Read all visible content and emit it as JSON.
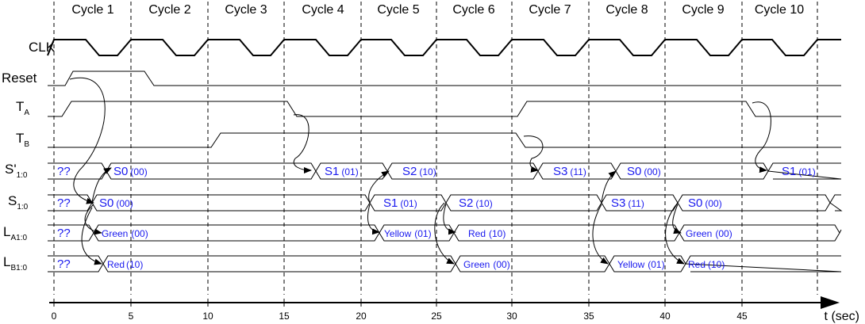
{
  "cycles": [
    "Cycle 1",
    "Cycle 2",
    "Cycle 3",
    "Cycle 4",
    "Cycle 5",
    "Cycle 6",
    "Cycle 7",
    "Cycle 8",
    "Cycle 9",
    "Cycle 10"
  ],
  "signals": [
    {
      "id": "clk",
      "name": "CLK",
      "sub": ""
    },
    {
      "id": "reset",
      "name": "Reset",
      "sub": ""
    },
    {
      "id": "ta",
      "name": "T",
      "sub": "A"
    },
    {
      "id": "tb",
      "name": "T",
      "sub": "B"
    },
    {
      "id": "snext",
      "name": "S'",
      "sub": "1:0"
    },
    {
      "id": "s",
      "name": "S",
      "sub": "1:0"
    },
    {
      "id": "la",
      "name": "L",
      "sub": "A1:0"
    },
    {
      "id": "lb",
      "name": "L",
      "sub": "B1:0"
    }
  ],
  "axis": {
    "title": "t (sec)",
    "ticks": [
      "0",
      "5",
      "10",
      "15",
      "20",
      "25",
      "30",
      "35",
      "40",
      "45"
    ]
  },
  "bus_values": {
    "snext": [
      {
        "name": "??",
        "code": ""
      },
      {
        "name": "S0",
        "code": "(00)"
      },
      {
        "name": "S1",
        "code": "(01)"
      },
      {
        "name": "S2",
        "code": "(10)"
      },
      {
        "name": "S3",
        "code": "(11)"
      },
      {
        "name": "S0",
        "code": "(00)"
      },
      {
        "name": "S1",
        "code": "(01)"
      }
    ],
    "s": [
      {
        "name": "??",
        "code": ""
      },
      {
        "name": "S0",
        "code": "(00)"
      },
      {
        "name": "S1",
        "code": "(01)"
      },
      {
        "name": "S2",
        "code": "(10)"
      },
      {
        "name": "S3",
        "code": "(11)"
      },
      {
        "name": "S0",
        "code": "(00)"
      }
    ],
    "la": [
      {
        "name": "??",
        "code": ""
      },
      {
        "name": "Green",
        "code": "(00)"
      },
      {
        "name": "Yellow",
        "code": "(01)"
      },
      {
        "name": "Red",
        "code": "(10)"
      },
      {
        "name": "Green",
        "code": "(00)"
      }
    ],
    "lb": [
      {
        "name": "??",
        "code": ""
      },
      {
        "name": "Red",
        "code": "(10)"
      },
      {
        "name": "Green",
        "code": "(00)"
      },
      {
        "name": "Yellow",
        "code": "(01)"
      },
      {
        "name": "Red",
        "code": "(10)"
      }
    ]
  }
}
